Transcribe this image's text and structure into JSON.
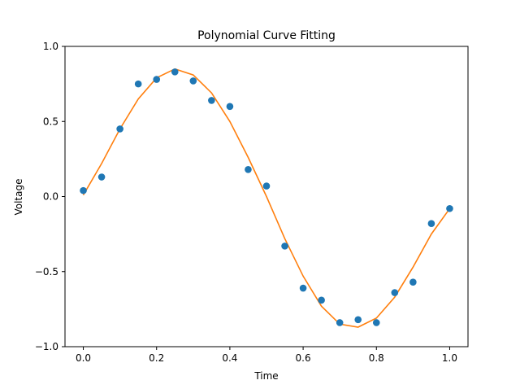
{
  "chart_data": {
    "type": "scatter",
    "title": "Polynomial Curve Fitting",
    "xlabel": "Time",
    "ylabel": "Voltage",
    "xlim": [
      -0.05,
      1.05
    ],
    "ylim": [
      -1.0,
      1.0
    ],
    "xticks": [
      0.0,
      0.2,
      0.4,
      0.6,
      0.8,
      1.0
    ],
    "xtick_labels": [
      "0.0",
      "0.2",
      "0.4",
      "0.6",
      "0.8",
      "1.0"
    ],
    "yticks": [
      -1.0,
      -0.5,
      0.0,
      0.5,
      1.0
    ],
    "ytick_labels": [
      "−1.0",
      "−0.5",
      "0.0",
      "0.5",
      "1.0"
    ],
    "grid": false,
    "series": [
      {
        "kind": "scatter",
        "color": "#1f77b4",
        "x": [
          0.0,
          0.05,
          0.1,
          0.15,
          0.2,
          0.25,
          0.3,
          0.35,
          0.4,
          0.45,
          0.5,
          0.55,
          0.6,
          0.65,
          0.7,
          0.75,
          0.8,
          0.85,
          0.9,
          0.95,
          1.0
        ],
        "y": [
          0.04,
          0.13,
          0.45,
          0.75,
          0.78,
          0.83,
          0.77,
          0.64,
          0.6,
          0.18,
          0.07,
          -0.33,
          -0.61,
          -0.69,
          -0.84,
          -0.82,
          -0.84,
          -0.64,
          -0.57,
          -0.18,
          -0.08
        ]
      },
      {
        "kind": "line",
        "color": "#ff7f0e",
        "x": [
          0.0,
          0.05,
          0.1,
          0.15,
          0.2,
          0.25,
          0.3,
          0.35,
          0.4,
          0.45,
          0.5,
          0.55,
          0.6,
          0.65,
          0.7,
          0.75,
          0.8,
          0.85,
          0.9,
          0.95,
          1.0
        ],
        "y": [
          0.01,
          0.22,
          0.45,
          0.65,
          0.79,
          0.85,
          0.81,
          0.69,
          0.5,
          0.26,
          0.0,
          -0.28,
          -0.53,
          -0.73,
          -0.85,
          -0.87,
          -0.81,
          -0.67,
          -0.47,
          -0.25,
          -0.08
        ]
      }
    ]
  }
}
